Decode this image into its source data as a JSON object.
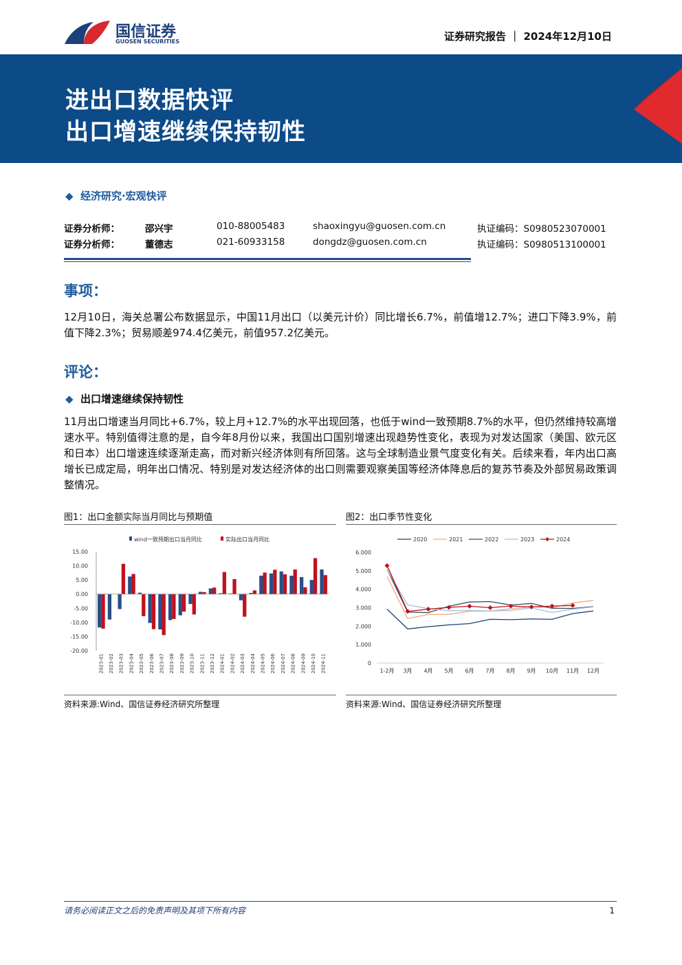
{
  "header": {
    "brand": "国信证券",
    "brand_en": "GUOSEN SECURITIES",
    "report_type": "证券研究报告",
    "date": "2024年12月10日"
  },
  "banner": {
    "title": "进出口数据快评",
    "subtitle": "出口增速继续保持韧性"
  },
  "category": "经济研究·宏观快评",
  "analysts": [
    [
      "证券分析师：",
      "邵兴宇",
      "010-88005483",
      "shaoxingyu@guosen.com.cn",
      "执证编码：S0980523070001"
    ],
    [
      "证券分析师：",
      "董德志",
      "021-60933158",
      "dongdz@guosen.com.cn",
      "执证编码：S0980513100001"
    ]
  ],
  "sections": [
    {
      "heading": "事项：",
      "paragraph": "12月10日，海关总署公布数据显示，中国11月出口（以美元计价）同比增长6.7%，前值增12.7%；进口下降3.9%，前值下降2.3%；贸易顺差974.4亿美元，前值957.2亿美元。"
    },
    {
      "heading": "评论：",
      "subheading": "出口增速继续保持韧性",
      "paragraph": "11月出口增速当月同比+6.7%，较上月+12.7%的水平出现回落，也低于wind一致预期8.7%的水平，但仍然维持较高增速水平。特别值得注意的是，自今年8月份以来，我国出口国别增速出现趋势性变化，表现为对发达国家（美国、欧元区和日本）出口增速连续逐渐走高，而对新兴经济体则有所回落。这与全球制造业景气度变化有关。后续来看，年内出口高增长已成定局，明年出口情况、特别是对发达经济体的出口则需要观察美国等经济体降息后的复苏节奏及外部贸易政策调整情况。"
    }
  ],
  "figures": [
    {
      "caption": "图1：出口金额实际当月同比与预期值",
      "source": "资料来源:Wind、国信证券经济研究所整理"
    },
    {
      "caption": "图2：出口季节性变化",
      "source": "资料来源:Wind、国信证券经济研究所整理"
    }
  ],
  "footer": {
    "disclaimer": "请务必阅读正文之后的免责声明及其项下所有内容",
    "page": "1"
  },
  "chart_data": [
    {
      "type": "bar",
      "categories": [
        "2023-01",
        "2023-02",
        "2023-03",
        "2023-04",
        "2023-05",
        "2023-06",
        "2023-07",
        "2023-08",
        "2023-09",
        "2023-10",
        "2023-11",
        "2023-12",
        "2024-01",
        "2024-02",
        "2024-03",
        "2024-04",
        "2024-05",
        "2024-06",
        "2024-07",
        "2024-08",
        "2024-09",
        "2024-10",
        "2024-11"
      ],
      "series": [
        {
          "name": "wind一致预期出口当月同比",
          "color": "#2a4f87",
          "values": [
            -11.8,
            -9.0,
            -5.3,
            6.2,
            0.5,
            -10.2,
            -12.5,
            -9.2,
            -7.5,
            -3.5,
            0.8,
            2.0,
            0.3,
            0.2,
            -2.2,
            0.4,
            6.5,
            7.3,
            8.0,
            6.5,
            6.0,
            5.0,
            8.7
          ]
        },
        {
          "name": "实际出口当月同比",
          "color": "#c0111f",
          "values": [
            -12.2,
            null,
            10.7,
            7.1,
            -7.8,
            -12.4,
            -14.5,
            -8.8,
            -6.2,
            -7.2,
            0.7,
            2.3,
            7.8,
            5.3,
            -8.0,
            1.3,
            7.6,
            8.6,
            7.0,
            8.7,
            2.4,
            12.7,
            6.7
          ]
        }
      ],
      "ylim": [
        -20,
        15
      ],
      "yticks": [
        {
          "value": 15,
          "label": "15.00"
        },
        {
          "value": 10,
          "label": "10.00"
        },
        {
          "value": 5,
          "label": "5.00"
        },
        {
          "value": 0,
          "label": "0.00"
        },
        {
          "value": -5,
          "label": "-5.00"
        },
        {
          "value": -10,
          "label": "-10.00"
        },
        {
          "value": -15,
          "label": "-15.00"
        },
        {
          "value": -20,
          "label": "-20.00"
        }
      ],
      "grid": false
    },
    {
      "type": "line",
      "categories": [
        "1-2月",
        "3月",
        "4月",
        "5月",
        "6月",
        "7月",
        "8月",
        "9月",
        "10月",
        "11月",
        "12月"
      ],
      "series": [
        {
          "name": "2020",
          "color": "#1f3f73",
          "values": [
            2.92,
            1.85,
            1.97,
            2.07,
            2.14,
            2.37,
            2.35,
            2.39,
            2.37,
            2.68,
            2.82
          ]
        },
        {
          "name": "2021",
          "color": "#f2a97e",
          "values": [
            4.69,
            2.41,
            2.63,
            2.64,
            2.81,
            2.82,
            2.94,
            3.05,
            3.0,
            3.25,
            3.4
          ]
        },
        {
          "name": "2022",
          "color": "#3b4a60",
          "values": [
            5.08,
            2.76,
            2.73,
            3.08,
            3.31,
            3.33,
            3.14,
            3.23,
            2.97,
            2.96,
            3.06
          ]
        },
        {
          "name": "2023",
          "color": "#9cc2e5",
          "values": [
            5.06,
            3.15,
            2.95,
            2.84,
            2.85,
            2.82,
            2.85,
            2.99,
            2.74,
            2.92,
            3.04
          ]
        },
        {
          "name": "2024",
          "color": "#c0111f",
          "marker": "diamond",
          "values": [
            5.28,
            2.8,
            2.92,
            3.02,
            3.08,
            3.0,
            3.09,
            3.04,
            3.09,
            3.12,
            null
          ]
        }
      ],
      "ylim": [
        0,
        6
      ],
      "yticks": [
        {
          "value": 6,
          "label": "6.000"
        },
        {
          "value": 5,
          "label": "5.000"
        },
        {
          "value": 4,
          "label": "4.000"
        },
        {
          "value": 3,
          "label": "3.000"
        },
        {
          "value": 2,
          "label": "2.000"
        },
        {
          "value": 1,
          "label": "1.000"
        },
        0
      ],
      "grid": false
    }
  ]
}
